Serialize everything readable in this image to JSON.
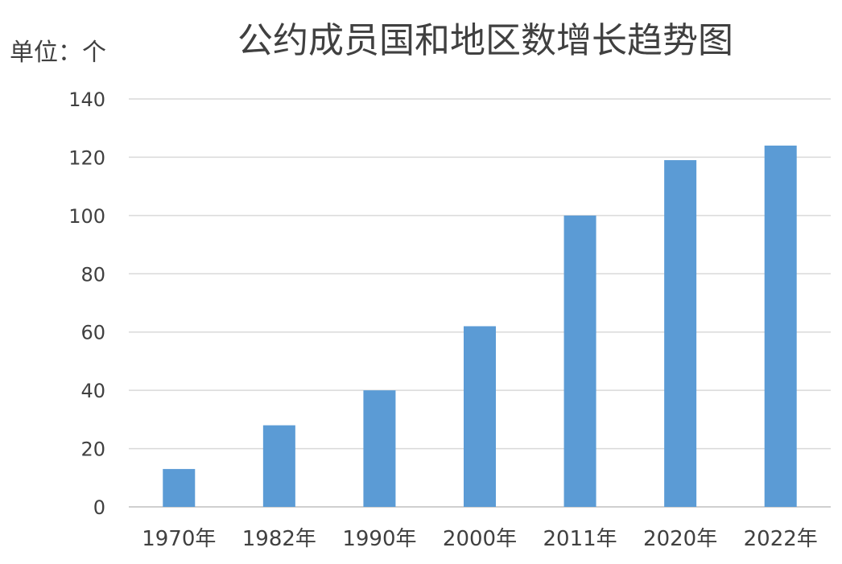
{
  "chart_data": {
    "type": "bar",
    "title": "公约成员国和地区数增长趋势图",
    "unit_label": "单位：个",
    "categories": [
      "1970年",
      "1982年",
      "1990年",
      "2000年",
      "2011年",
      "2020年",
      "2022年"
    ],
    "series": [
      {
        "values": [
          13,
          28,
          40,
          62,
          100,
          119,
          124
        ]
      }
    ],
    "ylim": [
      0,
      140
    ],
    "yticks": [
      0,
      20,
      40,
      60,
      80,
      100,
      120,
      140
    ],
    "grid": true,
    "legend": "none",
    "colors": {
      "bar": "#5b9bd5"
    }
  }
}
